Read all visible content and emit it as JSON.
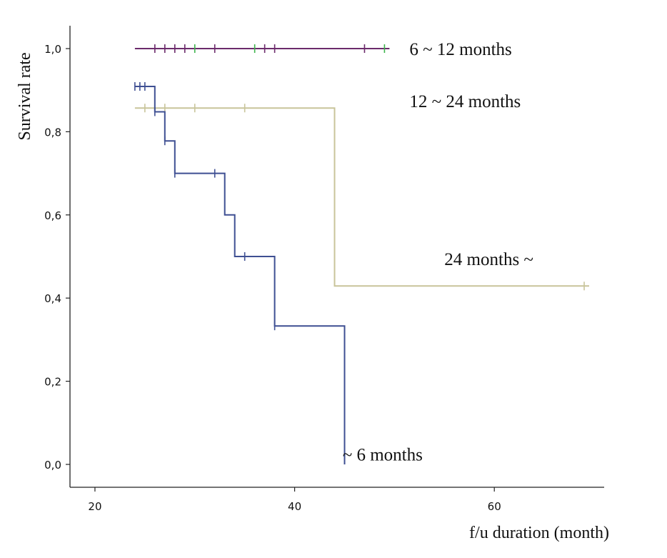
{
  "chart_data": {
    "type": "line",
    "subtype": "kaplan-meier step",
    "title": "",
    "xlabel": "f/u duration (month)",
    "ylabel": "Survival rate",
    "xlim": [
      17.5,
      71
    ],
    "ylim": [
      -0.055,
      1.055
    ],
    "xticks": [
      20,
      40,
      60
    ],
    "xtick_labels": [
      "20",
      "40",
      "60"
    ],
    "yticks": [
      0.0,
      0.2,
      0.4,
      0.6,
      0.8,
      1.0
    ],
    "ytick_labels": [
      "0,0",
      "0,2",
      "0,4",
      "0,6",
      "0,8",
      "1,0"
    ],
    "grid": false,
    "series": [
      {
        "name": "6 ~ 12 months",
        "color": "#6b2a6b",
        "censor_color": "#3cb44b",
        "steps": [
          [
            24,
            1.0
          ],
          [
            49.5,
            1.0
          ]
        ],
        "censored": [
          [
            26,
            1.0
          ],
          [
            27,
            1.0
          ],
          [
            28,
            1.0
          ],
          [
            29,
            1.0
          ],
          [
            30,
            1.0
          ],
          [
            32,
            1.0
          ],
          [
            36,
            1.0
          ],
          [
            37,
            1.0
          ],
          [
            38,
            1.0
          ],
          [
            47,
            1.0
          ],
          [
            49,
            1.0
          ]
        ],
        "label_pos": [
          51.5,
          1.0
        ],
        "label": "6 ~ 12 months"
      },
      {
        "name": "12 ~ 24 months",
        "color": "#c8c49a",
        "censor_color": "#c8c49a",
        "steps": [
          [
            24,
            0.857
          ],
          [
            44,
            0.857
          ],
          [
            44,
            0.429
          ],
          [
            69.5,
            0.429
          ]
        ],
        "censored": [
          [
            25,
            0.857
          ],
          [
            27,
            0.857
          ],
          [
            30,
            0.857
          ],
          [
            35,
            0.857
          ],
          [
            69,
            0.429
          ]
        ],
        "label_pos": [
          51.5,
          0.875
        ],
        "label": "12 ~ 24 months"
      },
      {
        "name": "24 months ~",
        "color": "#c8c49a",
        "label_pos": [
          55,
          0.495
        ],
        "label": "24 months ~"
      },
      {
        "name": "~ 6 months",
        "color": "#3e4f92",
        "censor_color": "#3e4f92",
        "steps": [
          [
            24,
            0.909
          ],
          [
            26,
            0.909
          ],
          [
            26,
            0.848
          ],
          [
            27,
            0.848
          ],
          [
            27,
            0.778
          ],
          [
            28,
            0.778
          ],
          [
            28,
            0.7
          ],
          [
            33,
            0.7
          ],
          [
            33,
            0.6
          ],
          [
            34,
            0.6
          ],
          [
            34,
            0.5
          ],
          [
            38,
            0.5
          ],
          [
            38,
            0.333
          ],
          [
            45,
            0.333
          ],
          [
            45,
            0.0
          ]
        ],
        "censored": [
          [
            24,
            0.909
          ],
          [
            24.5,
            0.909
          ],
          [
            25,
            0.909
          ],
          [
            26,
            0.848
          ],
          [
            27,
            0.778
          ],
          [
            28,
            0.7
          ],
          [
            32,
            0.7
          ],
          [
            35,
            0.5
          ],
          [
            38,
            0.333
          ]
        ],
        "label_pos": [
          44.8,
          0.025
        ],
        "label": "~ 6 months"
      }
    ]
  }
}
